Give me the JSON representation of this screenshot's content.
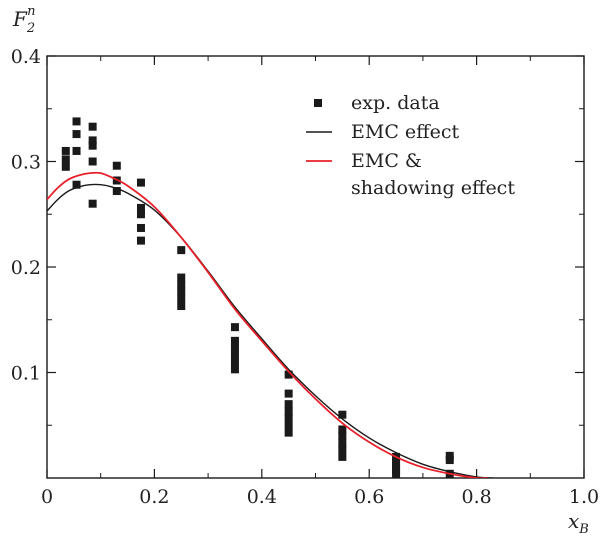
{
  "chart_data": {
    "type": "scatter",
    "title": "",
    "xlabel": {
      "main": "x",
      "sub": "B"
    },
    "ylabel": {
      "main": "F",
      "sub": "2",
      "sup": "n"
    },
    "xlim": [
      0,
      1.0
    ],
    "ylim": [
      0,
      0.4
    ],
    "x_ticks": [
      0,
      0.2,
      0.4,
      0.6,
      0.8,
      1.0
    ],
    "x_tick_labels": [
      "0",
      "0.2",
      "0.4",
      "0.6",
      "0.8",
      "1.0"
    ],
    "y_ticks": [
      0.1,
      0.2,
      0.3,
      0.4
    ],
    "y_tick_labels": [
      "0.1",
      "0.2",
      "0.3",
      "0.4"
    ],
    "grid": false,
    "legend": {
      "placement": "top-right",
      "entries": [
        {
          "key": "data",
          "lines": [
            "exp. data"
          ]
        },
        {
          "key": "emc",
          "lines": [
            "EMC effect"
          ]
        },
        {
          "key": "shadow",
          "lines": [
            "EMC &",
            "shadowing effect"
          ]
        }
      ]
    },
    "colors": {
      "data": "#1a1a1a",
      "emc": "#1a1a1a",
      "shadow": "#e8202a"
    },
    "series": [
      {
        "key": "data",
        "type": "scatter",
        "points": [
          [
            0.035,
            0.295
          ],
          [
            0.035,
            0.302
          ],
          [
            0.035,
            0.31
          ],
          [
            0.055,
            0.278
          ],
          [
            0.055,
            0.31
          ],
          [
            0.055,
            0.326
          ],
          [
            0.055,
            0.338
          ],
          [
            0.085,
            0.26
          ],
          [
            0.085,
            0.3
          ],
          [
            0.085,
            0.315
          ],
          [
            0.085,
            0.32
          ],
          [
            0.085,
            0.333
          ],
          [
            0.13,
            0.272
          ],
          [
            0.13,
            0.282
          ],
          [
            0.13,
            0.296
          ],
          [
            0.175,
            0.225
          ],
          [
            0.175,
            0.237
          ],
          [
            0.175,
            0.25
          ],
          [
            0.175,
            0.256
          ],
          [
            0.175,
            0.28
          ],
          [
            0.25,
            0.163
          ],
          [
            0.25,
            0.17
          ],
          [
            0.25,
            0.177
          ],
          [
            0.25,
            0.183
          ],
          [
            0.25,
            0.19
          ],
          [
            0.25,
            0.216
          ],
          [
            0.35,
            0.103
          ],
          [
            0.35,
            0.11
          ],
          [
            0.35,
            0.117
          ],
          [
            0.35,
            0.123
          ],
          [
            0.35,
            0.13
          ],
          [
            0.35,
            0.143
          ],
          [
            0.45,
            0.043
          ],
          [
            0.45,
            0.05
          ],
          [
            0.45,
            0.057
          ],
          [
            0.45,
            0.063
          ],
          [
            0.45,
            0.07
          ],
          [
            0.45,
            0.08
          ],
          [
            0.45,
            0.098
          ],
          [
            0.55,
            0.02
          ],
          [
            0.55,
            0.027
          ],
          [
            0.55,
            0.033
          ],
          [
            0.55,
            0.04
          ],
          [
            0.55,
            0.046
          ],
          [
            0.55,
            0.06
          ],
          [
            0.65,
            0.004
          ],
          [
            0.65,
            0.008
          ],
          [
            0.65,
            0.012
          ],
          [
            0.65,
            0.016
          ],
          [
            0.65,
            0.02
          ],
          [
            0.75,
            0.004
          ],
          [
            0.75,
            0.017
          ],
          [
            0.75,
            0.021
          ]
        ]
      },
      {
        "key": "emc",
        "type": "line",
        "points": [
          [
            0.0,
            0.253
          ],
          [
            0.02,
            0.264
          ],
          [
            0.04,
            0.272
          ],
          [
            0.06,
            0.276
          ],
          [
            0.08,
            0.278
          ],
          [
            0.1,
            0.278
          ],
          [
            0.12,
            0.276
          ],
          [
            0.15,
            0.27
          ],
          [
            0.2,
            0.254
          ],
          [
            0.25,
            0.228
          ],
          [
            0.3,
            0.196
          ],
          [
            0.35,
            0.162
          ],
          [
            0.4,
            0.132
          ],
          [
            0.45,
            0.103
          ],
          [
            0.5,
            0.078
          ],
          [
            0.55,
            0.056
          ],
          [
            0.6,
            0.038
          ],
          [
            0.65,
            0.024
          ],
          [
            0.7,
            0.013
          ],
          [
            0.75,
            0.006
          ],
          [
            0.8,
            0.001
          ],
          [
            0.83,
            0.0
          ]
        ]
      },
      {
        "key": "shadow",
        "type": "line",
        "points": [
          [
            0.0,
            0.264
          ],
          [
            0.02,
            0.275
          ],
          [
            0.04,
            0.283
          ],
          [
            0.06,
            0.287
          ],
          [
            0.08,
            0.289
          ],
          [
            0.1,
            0.289
          ],
          [
            0.12,
            0.285
          ],
          [
            0.15,
            0.277
          ],
          [
            0.2,
            0.257
          ],
          [
            0.25,
            0.228
          ],
          [
            0.3,
            0.195
          ],
          [
            0.35,
            0.16
          ],
          [
            0.4,
            0.13
          ],
          [
            0.45,
            0.101
          ],
          [
            0.5,
            0.075
          ],
          [
            0.55,
            0.052
          ],
          [
            0.6,
            0.034
          ],
          [
            0.65,
            0.02
          ],
          [
            0.7,
            0.01
          ],
          [
            0.75,
            0.004
          ],
          [
            0.8,
            0.0
          ],
          [
            0.82,
            0.0
          ]
        ]
      }
    ]
  }
}
